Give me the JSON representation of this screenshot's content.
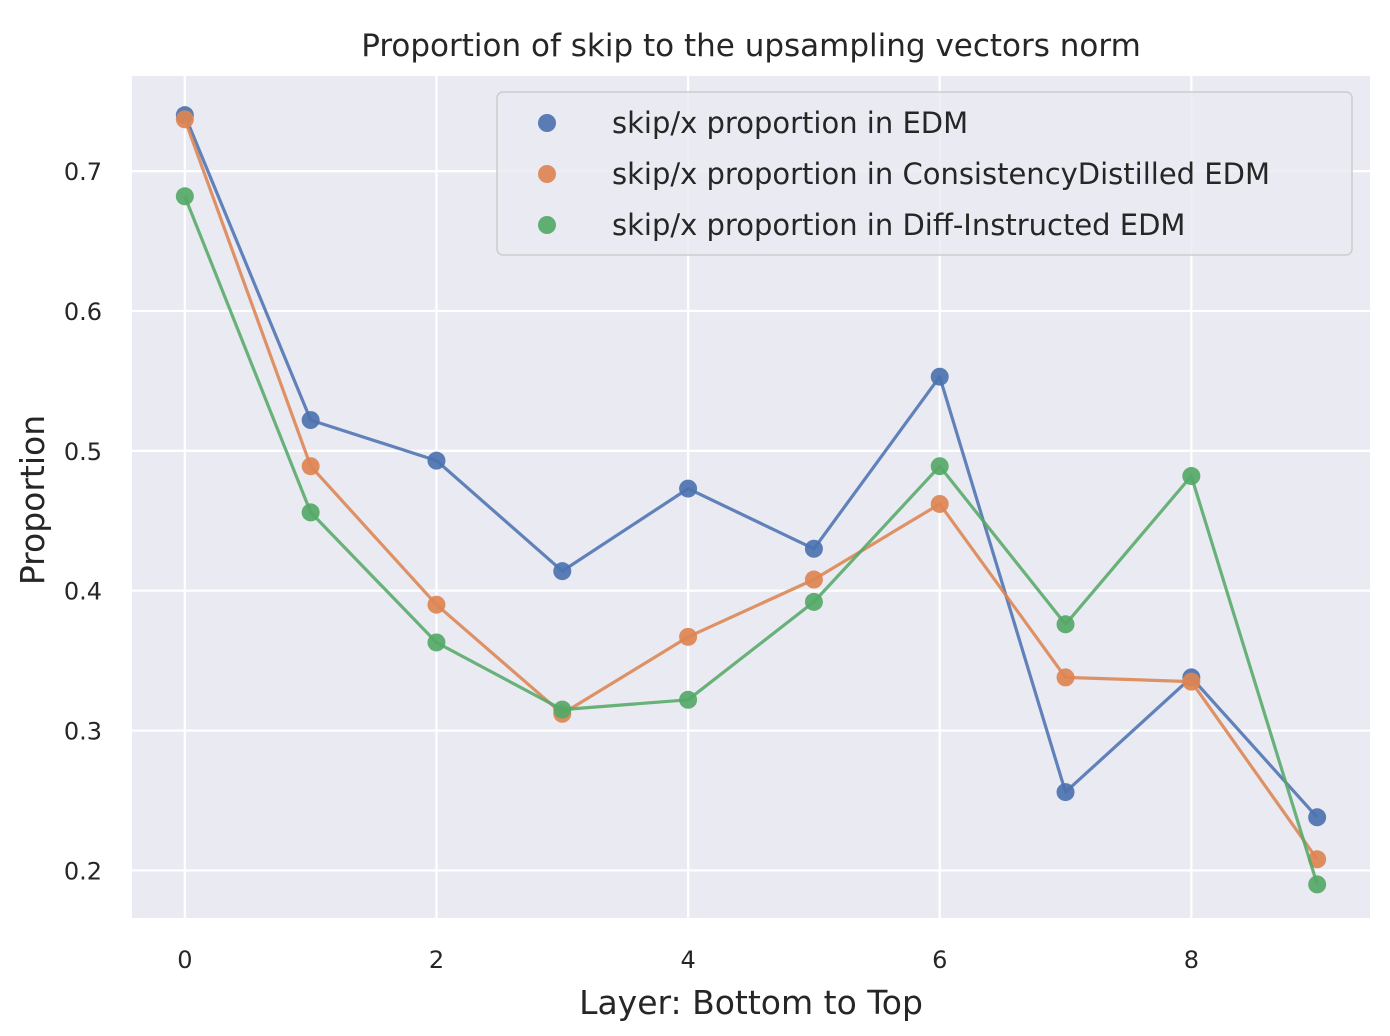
{
  "chart_data": {
    "type": "line",
    "title": "Proportion of skip to the upsampling vectors norm",
    "xlabel": "Layer: Bottom to Top",
    "ylabel": "Proportion",
    "xlim": [
      -0.42,
      9.42
    ],
    "ylim": [
      0.166,
      0.768
    ],
    "xticks": [
      0,
      2,
      4,
      6,
      8
    ],
    "yticks": [
      0.2,
      0.3,
      0.4,
      0.5,
      0.6,
      0.7
    ],
    "xtick_labels": [
      "0",
      "2",
      "4",
      "6",
      "8"
    ],
    "ytick_labels": [
      "0.2",
      "0.3",
      "0.4",
      "0.5",
      "0.6",
      "0.7"
    ],
    "grid": true,
    "legend_position": "top-right",
    "x": [
      0,
      1,
      2,
      3,
      4,
      5,
      6,
      7,
      8,
      9
    ],
    "series": [
      {
        "name": "skip/x proportion in EDM",
        "color": "#4c72b0",
        "values": [
          0.74,
          0.522,
          0.493,
          0.414,
          0.473,
          0.43,
          0.553,
          0.256,
          0.338,
          0.238
        ]
      },
      {
        "name": "skip/x proportion in ConsistencyDistilled EDM",
        "color": "#dd8452",
        "values": [
          0.737,
          0.489,
          0.39,
          0.312,
          0.367,
          0.408,
          0.462,
          0.338,
          0.335,
          0.208
        ]
      },
      {
        "name": "skip/x proportion in Diff-Instructed EDM",
        "color": "#55a868",
        "values": [
          0.682,
          0.456,
          0.363,
          0.315,
          0.322,
          0.392,
          0.489,
          0.376,
          0.482,
          0.19
        ]
      }
    ]
  }
}
